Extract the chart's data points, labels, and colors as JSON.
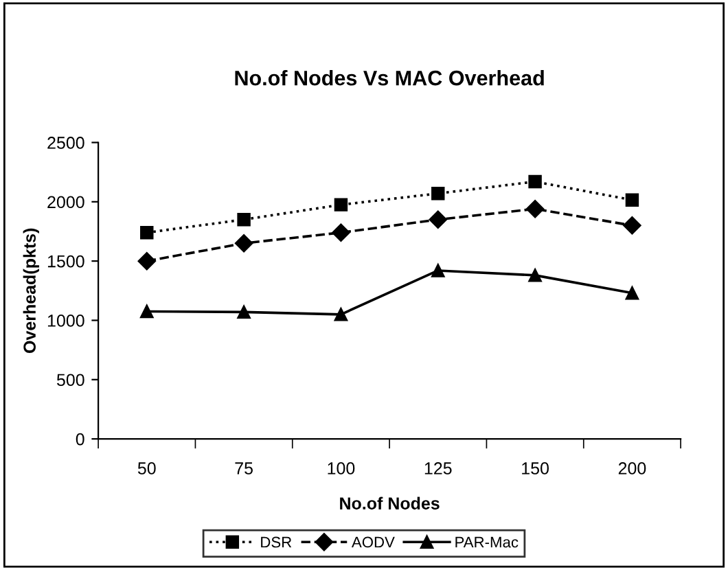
{
  "chart_data": {
    "type": "line",
    "title": "No.of Nodes Vs MAC Overhead",
    "xlabel": "No.of Nodes",
    "ylabel": "Overhead(pkts)",
    "categories": [
      "50",
      "75",
      "100",
      "125",
      "150",
      "200"
    ],
    "series": [
      {
        "name": "DSR",
        "color": "#000000",
        "marker": "square",
        "line_style": "dotted",
        "values": [
          1740,
          1850,
          1975,
          2070,
          2170,
          2015
        ]
      },
      {
        "name": "AODV",
        "color": "#000000",
        "marker": "diamond",
        "line_style": "dashed",
        "values": [
          1500,
          1650,
          1740,
          1850,
          1940,
          1800
        ]
      },
      {
        "name": "PAR-Mac",
        "color": "#000000",
        "marker": "triangle",
        "line_style": "solid",
        "values": [
          1075,
          1070,
          1050,
          1420,
          1380,
          1230
        ]
      }
    ],
    "ylim": [
      0,
      2500
    ],
    "yticks": [
      0,
      500,
      1000,
      1500,
      2000,
      2500
    ],
    "grid": false,
    "legend": "bottom"
  }
}
